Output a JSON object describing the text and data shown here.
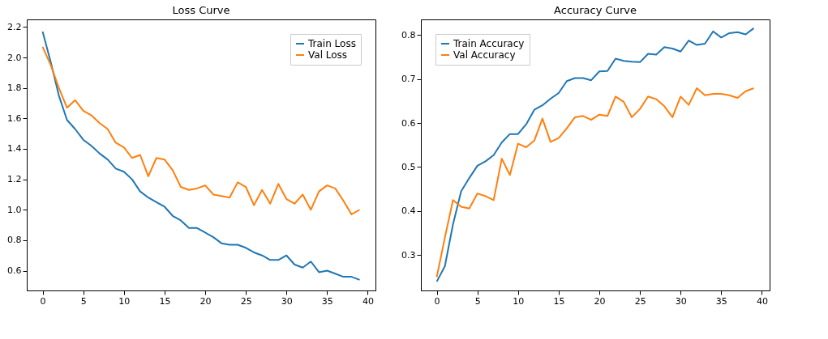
{
  "chart_data": [
    {
      "type": "line",
      "title": "Loss Curve",
      "x": [
        0,
        1,
        2,
        3,
        4,
        5,
        6,
        7,
        8,
        9,
        10,
        11,
        12,
        13,
        14,
        15,
        16,
        17,
        18,
        19,
        20,
        21,
        22,
        23,
        24,
        25,
        26,
        27,
        28,
        29,
        30,
        31,
        32,
        33,
        34,
        35,
        36,
        37,
        38,
        39
      ],
      "series": [
        {
          "name": "Train Loss",
          "color": "#1f77b4",
          "values": [
            2.17,
            1.97,
            1.75,
            1.59,
            1.53,
            1.46,
            1.42,
            1.37,
            1.33,
            1.27,
            1.25,
            1.2,
            1.12,
            1.08,
            1.05,
            1.02,
            0.96,
            0.93,
            0.88,
            0.88,
            0.85,
            0.82,
            0.78,
            0.77,
            0.77,
            0.75,
            0.72,
            0.7,
            0.67,
            0.67,
            0.7,
            0.64,
            0.62,
            0.66,
            0.59,
            0.6,
            0.58,
            0.56,
            0.56,
            0.54
          ]
        },
        {
          "name": "Val Loss",
          "color": "#ff7f0e",
          "values": [
            2.07,
            1.95,
            1.8,
            1.67,
            1.72,
            1.65,
            1.62,
            1.57,
            1.53,
            1.44,
            1.41,
            1.34,
            1.36,
            1.22,
            1.34,
            1.33,
            1.26,
            1.15,
            1.13,
            1.14,
            1.16,
            1.1,
            1.09,
            1.08,
            1.18,
            1.15,
            1.03,
            1.13,
            1.04,
            1.17,
            1.07,
            1.04,
            1.1,
            1.0,
            1.12,
            1.16,
            1.14,
            1.06,
            0.97,
            1.0
          ]
        }
      ],
      "xlim": [
        -1.95,
        40.95
      ],
      "xticks": [
        0,
        5,
        10,
        15,
        20,
        25,
        30,
        35,
        40
      ],
      "ylim": [
        0.47,
        2.25
      ],
      "yticks": [
        0.6,
        0.8,
        {
          "value": 1,
          "label": "1.0"
        },
        1.2,
        1.4,
        1.6,
        1.8,
        {
          "value": 2,
          "label": "2.0"
        },
        2.2
      ],
      "legend": "top right",
      "grid": false
    },
    {
      "type": "line",
      "title": "Accuracy Curve",
      "x": [
        0,
        1,
        2,
        3,
        4,
        5,
        6,
        7,
        8,
        9,
        10,
        11,
        12,
        13,
        14,
        15,
        16,
        17,
        18,
        19,
        20,
        21,
        22,
        23,
        24,
        25,
        26,
        27,
        28,
        29,
        30,
        31,
        32,
        33,
        34,
        35,
        36,
        37,
        38,
        39
      ],
      "series": [
        {
          "name": "Train Accuracy",
          "color": "#1f77b4",
          "values": [
            0.24,
            0.275,
            0.37,
            0.445,
            0.475,
            0.503,
            0.513,
            0.527,
            0.556,
            0.575,
            0.575,
            0.597,
            0.63,
            0.64,
            0.655,
            0.668,
            0.695,
            0.702,
            0.702,
            0.697,
            0.717,
            0.718,
            0.746,
            0.741,
            0.739,
            0.738,
            0.757,
            0.755,
            0.772,
            0.769,
            0.762,
            0.787,
            0.777,
            0.78,
            0.808,
            0.794,
            0.804,
            0.806,
            0.801,
            0.815
          ]
        },
        {
          "name": "Val Accuracy",
          "color": "#ff7f0e",
          "values": [
            0.25,
            0.34,
            0.425,
            0.41,
            0.406,
            0.44,
            0.434,
            0.425,
            0.519,
            0.482,
            0.553,
            0.545,
            0.56,
            0.61,
            0.557,
            0.566,
            0.588,
            0.613,
            0.616,
            0.607,
            0.619,
            0.616,
            0.66,
            0.648,
            0.613,
            0.632,
            0.66,
            0.654,
            0.638,
            0.613,
            0.66,
            0.641,
            0.679,
            0.663,
            0.666,
            0.666,
            0.663,
            0.657,
            0.672,
            0.679
          ]
        }
      ],
      "xlim": [
        -1.95,
        40.95
      ],
      "xticks": [
        0,
        5,
        10,
        15,
        20,
        25,
        30,
        35,
        40
      ],
      "ylim": [
        0.22,
        0.835
      ],
      "yticks": [
        0.3,
        0.4,
        0.5,
        0.6,
        0.7,
        0.8
      ],
      "legend": "top left",
      "grid": false
    }
  ]
}
